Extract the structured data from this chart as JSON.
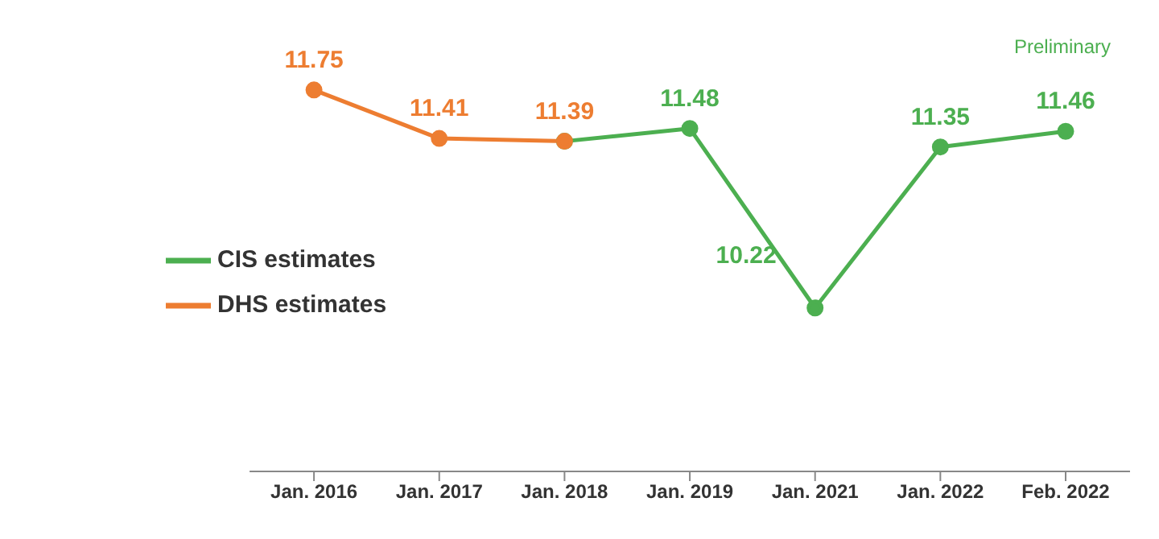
{
  "chart_data": {
    "type": "line",
    "categories": [
      "Jan. 2016",
      "Jan. 2017",
      "Jan. 2018",
      "Jan. 2019",
      "Jan. 2021",
      "Jan. 2022",
      "Feb. 2022"
    ],
    "series": [
      {
        "name": "CIS estimates",
        "color": "#4caf50",
        "values": [
          null,
          null,
          11.39,
          11.48,
          10.22,
          11.35,
          11.46
        ],
        "value_labels": [
          null,
          null,
          null,
          "11.48",
          "10.22",
          "11.35",
          "11.46"
        ]
      },
      {
        "name": "DHS estimates",
        "color": "#ed7d31",
        "values": [
          11.75,
          11.41,
          11.39,
          null,
          null,
          null,
          null
        ],
        "value_labels": [
          "11.75",
          "11.41",
          "11.39",
          null,
          null,
          null,
          null
        ]
      }
    ],
    "annotations": [
      "Preliminary"
    ],
    "legend": "left",
    "marker": "circle",
    "line_style": "solid",
    "grid": false,
    "tick_labels": "x"
  }
}
